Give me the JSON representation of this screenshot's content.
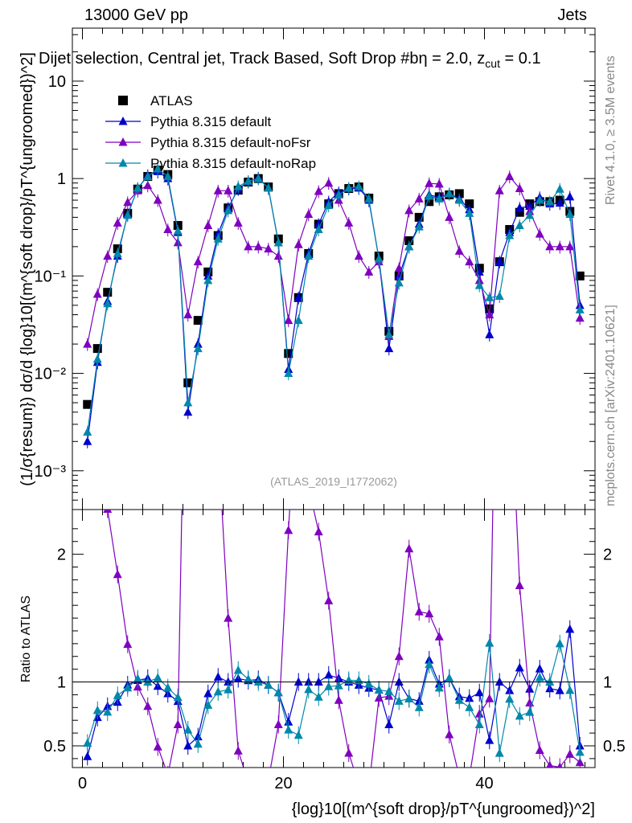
{
  "header": {
    "left_label": "13000 GeV pp",
    "right_label": "Jets",
    "subtitle": "Dijet selection, Central jet, Track Based, Soft Drop #b",
    "subtitle_beta": "η = 2.0, z",
    "subtitle_cut": "cut",
    "subtitle_val": "= 0.1"
  },
  "side_labels": {
    "rivet": "Rivet 4.1.0, ≥ 3.5M events",
    "mcplots": "mcplots.cern.ch [arXiv:2401.10621]"
  },
  "watermark": "(ATLAS_2019_I1772062)",
  "colors": {
    "atlas": "#000000",
    "default": "#0000cc",
    "noFsr": "#7f00bf",
    "noRap": "#0088aa"
  },
  "chart_data": {
    "type": "line",
    "title": "Dijet selection, Central jet, Track Based, Soft Drop",
    "xlabel": "{log}10[(m^{soft drop}/pT^{ungroomed})^2]",
    "ylabel": "(1/σ{resum}) dσ/d {log}10[(m^{soft drop}/pT^{ungroomed})^2]",
    "ratio_ylabel": "Ratio to ATLAS",
    "xlim": [
      -1,
      51
    ],
    "ylim": [
      0.0004,
      35
    ],
    "ratio_ylim": [
      0.33,
      2.35
    ],
    "yscale": "log",
    "x_ticks": [
      0,
      20,
      40
    ],
    "y_ticks": [
      0.001,
      0.01,
      0.1,
      1,
      10
    ],
    "y_tick_labels": [
      "10⁻³",
      "10⁻²",
      "10⁻¹",
      "1",
      "10"
    ],
    "ratio_ticks": [
      0.5,
      1,
      2
    ],
    "ratio_tick_labels": [
      "0.5",
      "1",
      "2"
    ],
    "x": [
      0.5,
      1.5,
      2.5,
      3.5,
      4.5,
      5.5,
      6.5,
      7.5,
      8.5,
      9.5,
      10.5,
      11.5,
      12.5,
      13.5,
      14.5,
      15.5,
      16.5,
      17.5,
      18.5,
      19.5,
      20.5,
      21.5,
      22.5,
      23.5,
      24.5,
      25.5,
      26.5,
      27.5,
      28.5,
      29.5,
      30.5,
      31.5,
      32.5,
      33.5,
      34.5,
      35.5,
      36.5,
      37.5,
      38.5,
      39.5,
      40.5,
      41.5,
      42.5,
      43.5,
      44.5,
      45.5,
      46.5,
      47.5,
      48.5,
      49.5
    ],
    "series": [
      {
        "name": "ATLAS",
        "marker": "square",
        "values": [
          0.0048,
          0.018,
          0.068,
          0.19,
          0.44,
          0.78,
          1.05,
          1.22,
          1.1,
          0.33,
          0.008,
          0.035,
          0.11,
          0.26,
          0.5,
          0.76,
          0.92,
          1.0,
          0.82,
          0.24,
          0.016,
          0.06,
          0.17,
          0.34,
          0.55,
          0.7,
          0.79,
          0.82,
          0.63,
          0.16,
          0.027,
          0.1,
          0.23,
          0.4,
          0.58,
          0.65,
          0.68,
          0.7,
          0.55,
          0.12,
          0.046,
          0.14,
          0.3,
          0.45,
          0.55,
          0.58,
          0.58,
          0.6,
          0.46,
          0.1
        ]
      },
      {
        "name": "Pythia 8.315 default",
        "marker": "triangle",
        "values": [
          0.002,
          0.013,
          0.055,
          0.16,
          0.43,
          0.79,
          1.08,
          1.18,
          1.0,
          0.28,
          0.004,
          0.02,
          0.1,
          0.27,
          0.5,
          0.78,
          0.93,
          1.02,
          0.8,
          0.22,
          0.011,
          0.06,
          0.17,
          0.34,
          0.58,
          0.72,
          0.79,
          0.8,
          0.6,
          0.15,
          0.018,
          0.1,
          0.2,
          0.34,
          0.68,
          0.64,
          0.7,
          0.62,
          0.48,
          0.11,
          0.025,
          0.14,
          0.28,
          0.5,
          0.52,
          0.64,
          0.55,
          0.56,
          0.65,
          0.05
        ]
      },
      {
        "name": "Pythia 8.315 default-noFsr",
        "marker": "triangle",
        "values": [
          0.02,
          0.065,
          0.16,
          0.35,
          0.57,
          0.75,
          0.85,
          0.6,
          0.3,
          0.22,
          0.04,
          0.14,
          0.33,
          0.75,
          0.75,
          0.35,
          0.2,
          0.2,
          0.19,
          0.16,
          0.035,
          0.21,
          0.43,
          0.74,
          0.9,
          0.6,
          0.35,
          0.16,
          0.11,
          0.14,
          0.024,
          0.12,
          0.47,
          0.62,
          0.89,
          0.88,
          0.4,
          0.18,
          0.14,
          0.09,
          0.04,
          0.75,
          1.05,
          0.79,
          0.46,
          0.27,
          0.2,
          0.2,
          0.2,
          0.037
        ]
      },
      {
        "name": "Pythia 8.315 default-noRap",
        "marker": "triangle",
        "values": [
          0.0025,
          0.014,
          0.052,
          0.17,
          0.42,
          0.8,
          1.05,
          1.26,
          1.05,
          0.29,
          0.005,
          0.018,
          0.09,
          0.24,
          0.47,
          0.83,
          0.94,
          1.0,
          0.8,
          0.22,
          0.01,
          0.035,
          0.16,
          0.3,
          0.53,
          0.68,
          0.8,
          0.83,
          0.62,
          0.15,
          0.025,
          0.085,
          0.2,
          0.32,
          0.66,
          0.62,
          0.7,
          0.6,
          0.44,
          0.08,
          0.06,
          0.062,
          0.26,
          0.33,
          0.42,
          0.6,
          0.58,
          0.78,
          0.43,
          0.045
        ]
      }
    ]
  },
  "legend": [
    {
      "label": "ATLAS",
      "key": "atlas",
      "marker": "square"
    },
    {
      "label": "Pythia 8.315 default",
      "key": "default",
      "marker": "triangle"
    },
    {
      "label": "Pythia 8.315 default-noFsr",
      "key": "noFsr",
      "marker": "triangle"
    },
    {
      "label": "Pythia 8.315 default-noRap",
      "key": "noRap",
      "marker": "triangle"
    }
  ]
}
